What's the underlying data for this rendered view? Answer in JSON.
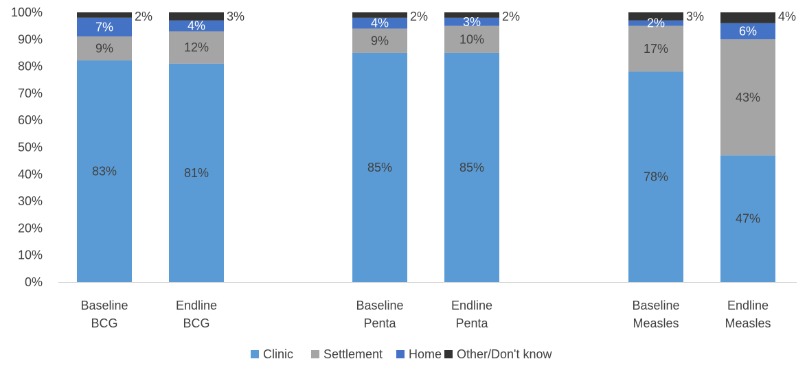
{
  "chart_data": {
    "type": "bar",
    "stacked": true,
    "stack_mode": "percent",
    "categories": [
      [
        "Baseline",
        "BCG"
      ],
      [
        "Endline",
        "BCG"
      ],
      [
        "Baseline",
        "Penta"
      ],
      [
        "Endline",
        "Penta"
      ],
      [
        "Baseline",
        "Measles"
      ],
      [
        "Endline",
        "Measles"
      ]
    ],
    "series": [
      {
        "name": "Clinic",
        "color": "#5B9BD5",
        "values": [
          83,
          81,
          85,
          85,
          78,
          47
        ],
        "labels": [
          "83%",
          "81%",
          "85%",
          "85%",
          "78%",
          "47%"
        ],
        "label_color": "#404040"
      },
      {
        "name": "Settlement",
        "color": "#A5A5A5",
        "values": [
          9,
          12,
          9,
          10,
          17,
          43
        ],
        "labels": [
          "9%",
          "12%",
          "9%",
          "10%",
          "17%",
          "43%"
        ],
        "label_color": "#404040"
      },
      {
        "name": "Home",
        "color": "#4472C4",
        "values": [
          7,
          4,
          4,
          3,
          2,
          6
        ],
        "labels": [
          "7%",
          "4%",
          "4%",
          "3%",
          "2%",
          "6%"
        ],
        "label_color": "#ffffff"
      },
      {
        "name": "Other/Don't know",
        "color": "#333333",
        "values": [
          2,
          3,
          2,
          2,
          3,
          4
        ],
        "labels": [
          "2%",
          "3%",
          "2%",
          "2%",
          "3%",
          "4%"
        ],
        "label_color": "#404040"
      }
    ],
    "ylim": [
      0,
      100
    ],
    "y_ticks": [
      "0%",
      "10%",
      "20%",
      "30%",
      "40%",
      "50%",
      "60%",
      "70%",
      "80%",
      "90%",
      "100%"
    ],
    "grid": false,
    "legend_position": "bottom",
    "title": "",
    "xlabel": "",
    "ylabel": ""
  }
}
